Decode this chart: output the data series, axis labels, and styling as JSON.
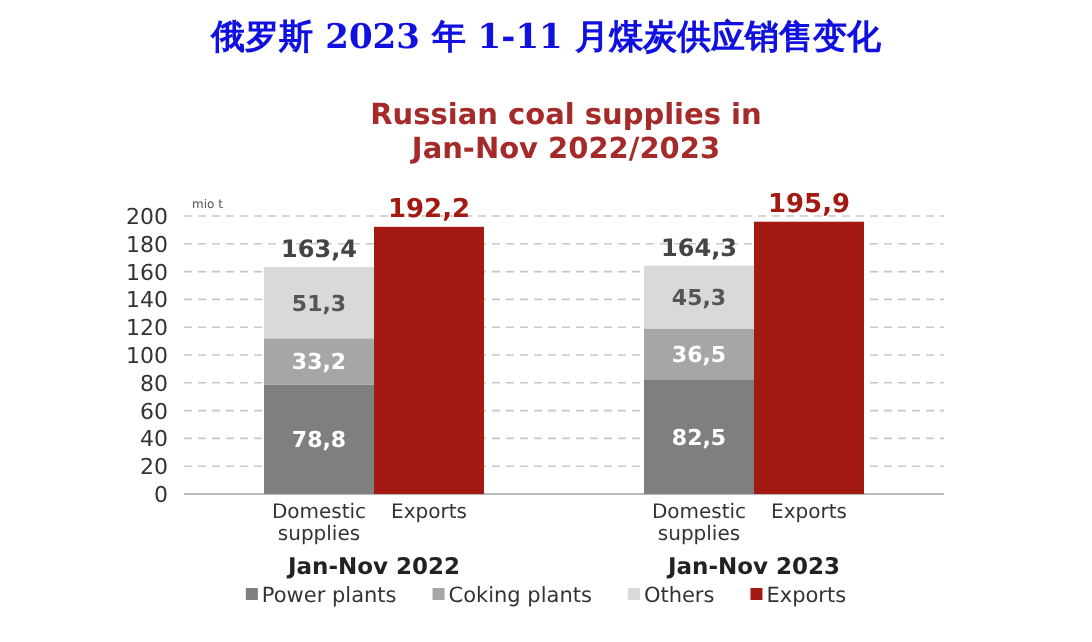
{
  "chart_data": {
    "type": "bar",
    "stacked": true,
    "title": "俄罗斯 2023 年 1-11 月煤炭供应销售变化",
    "subtitle": "Russian coal supplies in Jan-Nov 2022/2023",
    "ylabel": "mio t",
    "categories": [
      "Domestic supplies",
      "Exports",
      "Domestic supplies",
      "Exports"
    ],
    "series": [
      {
        "name": "Power plants",
        "color": "#7f7f7f",
        "values": [
          78.8,
          null,
          82.5,
          null
        ],
        "value_labels": [
          "78,8",
          null,
          "82,5",
          null
        ]
      },
      {
        "name": "Coking plants",
        "color": "#a6a6a6",
        "values": [
          33.2,
          null,
          36.5,
          null
        ],
        "value_labels": [
          "33,2",
          null,
          "36,5",
          null
        ]
      },
      {
        "name": "Others",
        "color": "#d9d9d9",
        "values": [
          51.3,
          null,
          45.3,
          null
        ],
        "value_labels": [
          "51,3",
          null,
          "45,3",
          null
        ]
      },
      {
        "name": "Exports",
        "color": "#a31a12",
        "values": [
          null,
          192.2,
          null,
          195.9
        ],
        "value_labels": [
          null,
          "192,2",
          null,
          "195,9"
        ]
      }
    ],
    "totals": [
      "163,4",
      null,
      "164,3",
      null
    ],
    "annotations": [
      "Jan-Nov 2022",
      "Jan-Nov 2023"
    ],
    "ylim": [
      0,
      200
    ],
    "yticks": [
      0,
      20,
      40,
      60,
      80,
      100,
      120,
      140,
      160,
      180,
      200
    ],
    "grid": "y",
    "legend": "bottom"
  }
}
